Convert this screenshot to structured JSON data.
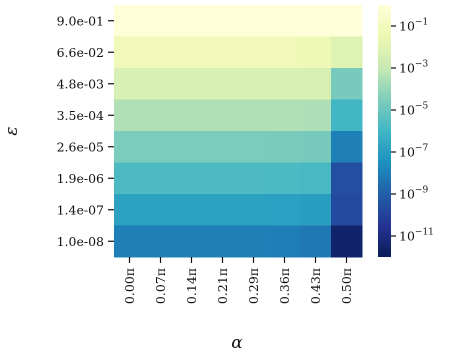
{
  "chart_data": {
    "type": "heatmap",
    "xlabel": "α",
    "ylabel": "ε",
    "x_categories": [
      "0.00π",
      "0.07π",
      "0.14π",
      "0.21π",
      "0.29π",
      "0.36π",
      "0.43π",
      "0.50π"
    ],
    "y_categories": [
      "9.0e-01",
      "6.6e-02",
      "4.8e-03",
      "3.5e-04",
      "2.6e-05",
      "1.9e-06",
      "1.4e-07",
      "1.0e-08"
    ],
    "color_scale": "log",
    "colormap": "YlGnBu",
    "colorbar_range": [
      1e-12,
      1
    ],
    "colorbar_ticks": [
      {
        "base": "10",
        "exp": "−1",
        "value": 0.1
      },
      {
        "base": "10",
        "exp": "−3",
        "value": 0.001
      },
      {
        "base": "10",
        "exp": "−5",
        "value": 1e-05
      },
      {
        "base": "10",
        "exp": "−7",
        "value": 1e-07
      },
      {
        "base": "10",
        "exp": "−9",
        "value": 1e-09
      },
      {
        "base": "10",
        "exp": "−11",
        "value": 1e-11
      }
    ],
    "values": [
      [
        0.9,
        0.9,
        0.9,
        0.9,
        0.9,
        0.9,
        0.9,
        0.9
      ],
      [
        0.066,
        0.066,
        0.066,
        0.066,
        0.066,
        0.066,
        0.05,
        0.008
      ],
      [
        0.0048,
        0.0048,
        0.0048,
        0.0048,
        0.0048,
        0.0048,
        0.004,
        2e-05
      ],
      [
        0.00035,
        0.00035,
        0.00035,
        0.00035,
        0.00035,
        0.00033,
        0.0003,
        1e-06
      ],
      [
        2.6e-05,
        2.6e-05,
        2.6e-05,
        2.6e-05,
        2.6e-05,
        2.5e-05,
        2e-05,
        1e-08
      ],
      [
        1.9e-06,
        1.9e-06,
        1.9e-06,
        1.9e-06,
        1.9e-06,
        1.8e-06,
        1.5e-06,
        3e-10
      ],
      [
        1.4e-07,
        1.4e-07,
        1.4e-07,
        1.4e-07,
        1.4e-07,
        1.3e-07,
        1.1e-07,
        2e-10
      ],
      [
        1e-08,
        1e-08,
        1e-08,
        1e-08,
        1e-08,
        9e-09,
        6e-09,
        3e-12
      ]
    ]
  }
}
